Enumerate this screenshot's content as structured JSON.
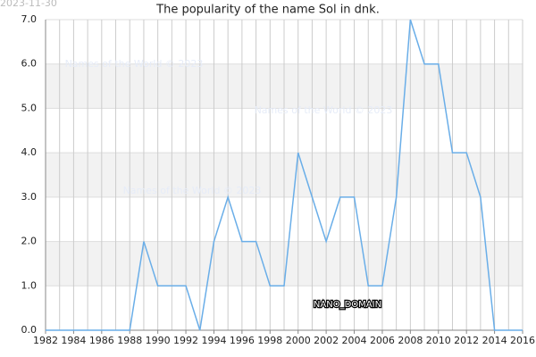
{
  "chart_data": {
    "type": "line",
    "title": "The popularity of the name Sol in dnk.",
    "date": "2023-11-30",
    "annotation": "NANO_DOMAIN",
    "watermarks": [
      "Names of the World © 2023",
      "Names of the World © 2023",
      "Names of the World © 2023"
    ],
    "x": [
      1982,
      1983,
      1984,
      1985,
      1986,
      1987,
      1988,
      1989,
      1990,
      1991,
      1992,
      1993,
      1994,
      1995,
      1996,
      1997,
      1998,
      1999,
      2000,
      2001,
      2002,
      2003,
      2004,
      2005,
      2006,
      2007,
      2008,
      2009,
      2010,
      2011,
      2012,
      2013,
      2014,
      2015,
      2016
    ],
    "series": [
      {
        "color": "#6aaee8",
        "values": [
          0,
          0,
          0,
          0,
          0,
          0,
          0,
          2,
          1,
          1,
          1,
          0,
          2,
          3,
          2,
          2,
          1,
          1,
          4,
          3,
          2,
          3,
          3,
          1,
          1,
          3,
          7,
          6,
          6,
          4,
          4,
          3,
          0,
          0,
          0
        ]
      }
    ],
    "xlim": [
      1982,
      2016
    ],
    "xticks": [
      1982,
      1984,
      1986,
      1988,
      1990,
      1992,
      1994,
      1996,
      1998,
      2000,
      2002,
      2004,
      2006,
      2008,
      2010,
      2012,
      2014,
      2016
    ],
    "ylim": [
      0,
      7
    ],
    "yticks": [
      {
        "value": 0,
        "label": "0.0"
      },
      {
        "value": 1,
        "label": "1.0"
      },
      {
        "value": 2,
        "label": "2.0"
      },
      {
        "value": 3,
        "label": "3.0"
      },
      {
        "value": 4,
        "label": "4.0"
      },
      {
        "value": 5,
        "label": "5.0"
      },
      {
        "value": 6,
        "label": "6.0"
      },
      {
        "value": 7,
        "label": "7.0"
      }
    ],
    "grid": true
  }
}
